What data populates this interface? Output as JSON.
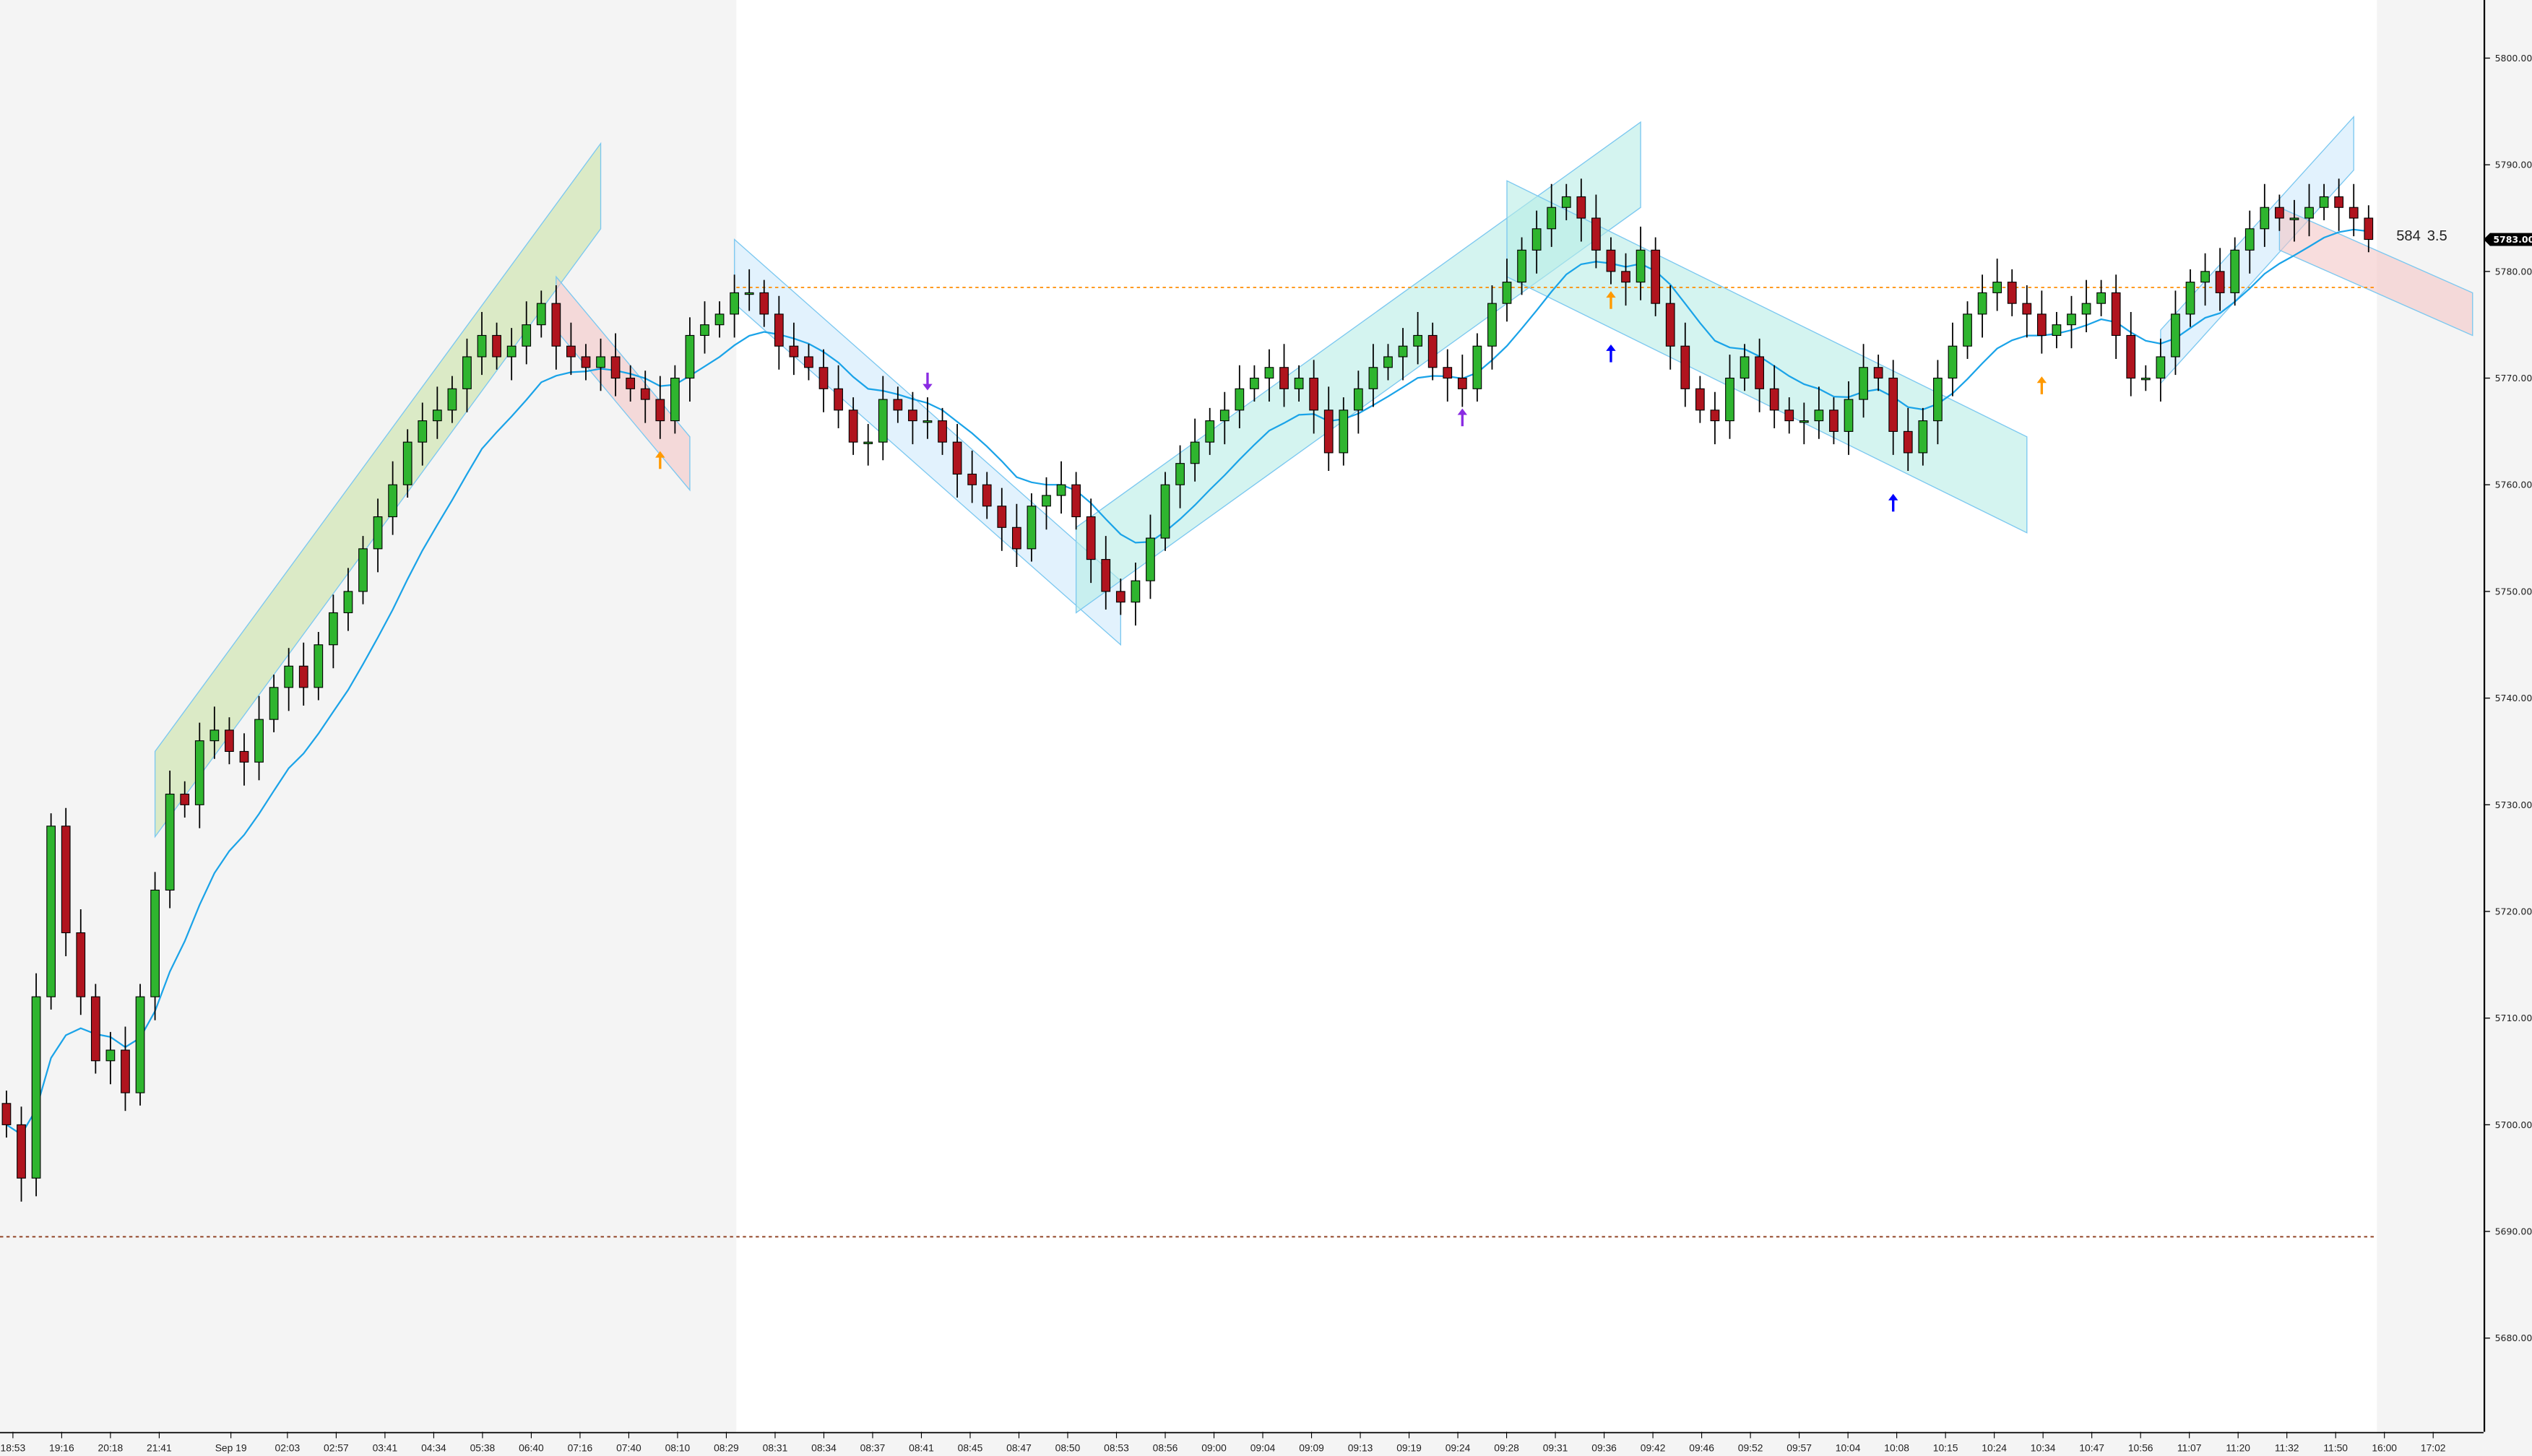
{
  "chart_data": {
    "type": "candlestick",
    "title": "",
    "xlabel": "",
    "ylabel": "",
    "ylim": [
      5674,
      5806
    ],
    "y_ticks": [
      "5800.00",
      "5790.00",
      "5780.00",
      "5770.00",
      "5760.00",
      "5750.00",
      "5740.00",
      "5730.00",
      "5720.00",
      "5710.00",
      "5700.00",
      "5690.00",
      "5680.00"
    ],
    "x_ticks": [
      "18:53",
      "19:16",
      "20:18",
      "21:41",
      "Sep 19",
      "02:03",
      "02:57",
      "03:41",
      "04:34",
      "05:38",
      "06:40",
      "07:16",
      "07:40",
      "08:10",
      "08:29",
      "08:31",
      "08:34",
      "08:37",
      "08:41",
      "08:45",
      "08:47",
      "08:50",
      "08:53",
      "08:56",
      "09:00",
      "09:04",
      "09:09",
      "09:13",
      "09:19",
      "09:24",
      "09:28",
      "09:31",
      "09:36",
      "09:42",
      "09:46",
      "09:52",
      "09:57",
      "10:04",
      "10:08",
      "10:15",
      "10:24",
      "10:34",
      "10:47",
      "10:56",
      "11:07",
      "11:20",
      "11:32",
      "11:50",
      "16:00",
      "17:02"
    ],
    "closes": [
      5700,
      5695,
      5712,
      5728,
      5718,
      5712,
      5706,
      5707,
      5703,
      5712,
      5722,
      5731,
      5730,
      5736,
      5737,
      5735,
      5734,
      5738,
      5741,
      5743,
      5741,
      5745,
      5748,
      5750,
      5754,
      5757,
      5760,
      5764,
      5766,
      5767,
      5769,
      5772,
      5774,
      5772,
      5773,
      5775,
      5777,
      5773,
      5772,
      5771,
      5772,
      5770,
      5769,
      5768,
      5766,
      5770,
      5774,
      5775,
      5776,
      5778,
      5778,
      5776,
      5773,
      5772,
      5771,
      5769,
      5767,
      5764,
      5764,
      5768,
      5767,
      5766,
      5766,
      5764,
      5761,
      5760,
      5758,
      5756,
      5754,
      5758,
      5759,
      5760,
      5757,
      5753,
      5750,
      5749,
      5751,
      5755,
      5760,
      5762,
      5764,
      5766,
      5767,
      5769,
      5770,
      5771,
      5769,
      5770,
      5767,
      5763,
      5767,
      5769,
      5771,
      5772,
      5773,
      5774,
      5771,
      5770,
      5769,
      5773,
      5777,
      5779,
      5782,
      5784,
      5786,
      5787,
      5785,
      5782,
      5780,
      5779,
      5782,
      5777,
      5773,
      5769,
      5767,
      5766,
      5770,
      5772,
      5769,
      5767,
      5766,
      5766,
      5767,
      5765,
      5768,
      5771,
      5770,
      5765,
      5763,
      5766,
      5770,
      5773,
      5776,
      5778,
      5779,
      5777,
      5776,
      5774,
      5775,
      5776,
      5777,
      5778,
      5774,
      5770,
      5770,
      5772,
      5776,
      5779,
      5780,
      5778,
      5782,
      5784,
      5786,
      5785,
      5785,
      5786,
      5787,
      5786,
      5785,
      5783
    ],
    "first_open": 5702,
    "last_price": "5783.00",
    "readout": {
      "a": "584",
      "b": "3.5"
    },
    "reference_lines": [
      {
        "price": 5778.5,
        "color": "#ff8c00",
        "style": "dashed"
      },
      {
        "price": 5689.5,
        "color": "#8b3a1a",
        "style": "dashed"
      }
    ],
    "channels": [
      {
        "from": [
          10,
          5731
        ],
        "to": [
          40,
          5788
        ],
        "width": 8,
        "color": "#c9e3a6"
      },
      {
        "from": [
          37,
          5777
        ],
        "to": [
          46,
          5762
        ],
        "width": 5,
        "color": "#f3c6c6"
      },
      {
        "from": [
          49,
          5780
        ],
        "to": [
          75,
          5748
        ],
        "width": 6,
        "color": "#cfe9fb"
      },
      {
        "from": [
          72,
          5752
        ],
        "to": [
          110,
          5790
        ],
        "width": 8,
        "color": "#b7ece6"
      },
      {
        "from": [
          101,
          5784
        ],
        "to": [
          136,
          5760
        ],
        "width": 9,
        "color": "#b7ece6"
      },
      {
        "from": [
          145,
          5772
        ],
        "to": [
          158,
          5792
        ],
        "width": 5,
        "color": "#cfe9fb"
      },
      {
        "from": [
          153,
          5784
        ],
        "to": [
          166,
          5776
        ],
        "width": 4,
        "color": "#f3c6c6"
      }
    ],
    "markers": [
      {
        "index": 44,
        "price": 5763,
        "dir": "up",
        "color": "#ff9900"
      },
      {
        "index": 62,
        "price": 5769,
        "dir": "down",
        "color": "#8a2be2"
      },
      {
        "index": 98,
        "price": 5767,
        "dir": "up",
        "color": "#8a2be2"
      },
      {
        "index": 108,
        "price": 5773,
        "dir": "up",
        "color": "#0000ff"
      },
      {
        "index": 108,
        "price": 5778,
        "dir": "up",
        "color": "#ff9900"
      },
      {
        "index": 127,
        "price": 5759,
        "dir": "up",
        "color": "#0000ff"
      },
      {
        "index": 137,
        "price": 5770,
        "dir": "up",
        "color": "#ff9900"
      }
    ],
    "colors": {
      "up": "#2fb52f",
      "down": "#b0141e",
      "ma": "#1aa3e8",
      "session_shade": "#f4f4f4",
      "plot_bg": "#ffffff"
    }
  }
}
